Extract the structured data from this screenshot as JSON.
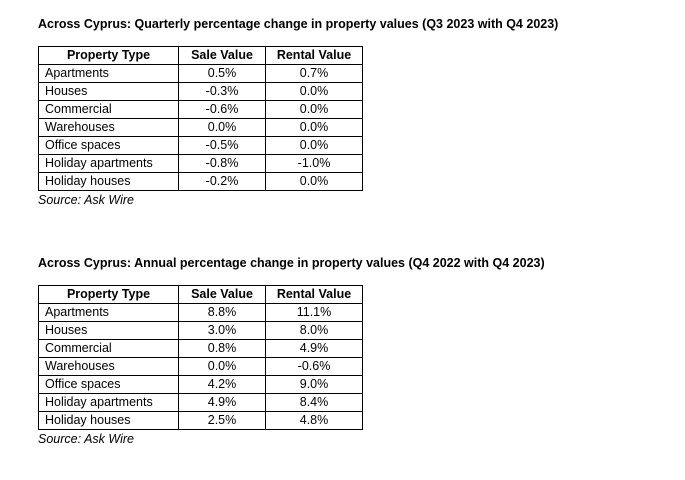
{
  "tables": [
    {
      "title": "Across Cyprus: Quarterly percentage change in property values (Q3 2023 with Q4 2023)",
      "headers": [
        "Property Type",
        "Sale Value",
        "Rental Value"
      ],
      "rows": [
        [
          "Apartments",
          "0.5%",
          "0.7%"
        ],
        [
          "Houses",
          "-0.3%",
          "0.0%"
        ],
        [
          "Commercial",
          "-0.6%",
          "0.0%"
        ],
        [
          "Warehouses",
          "0.0%",
          "0.0%"
        ],
        [
          "Office spaces",
          "-0.5%",
          "0.0%"
        ],
        [
          "Holiday apartments",
          "-0.8%",
          "-1.0%"
        ],
        [
          "Holiday houses",
          "-0.2%",
          "0.0%"
        ]
      ],
      "source": "Source: Ask Wire"
    },
    {
      "title": "Across Cyprus: Annual percentage change in property values (Q4 2022 with Q4 2023)",
      "headers": [
        "Property Type",
        "Sale Value",
        "Rental Value"
      ],
      "rows": [
        [
          "Apartments",
          "8.8%",
          "11.1%"
        ],
        [
          "Houses",
          "3.0%",
          "8.0%"
        ],
        [
          "Commercial",
          "0.8%",
          "4.9%"
        ],
        [
          "Warehouses",
          "0.0%",
          "-0.6%"
        ],
        [
          "Office spaces",
          "4.2%",
          "9.0%"
        ],
        [
          "Holiday apartments",
          "4.9%",
          "8.4%"
        ],
        [
          "Holiday houses",
          "2.5%",
          "4.8%"
        ]
      ],
      "source": "Source: Ask Wire"
    }
  ]
}
